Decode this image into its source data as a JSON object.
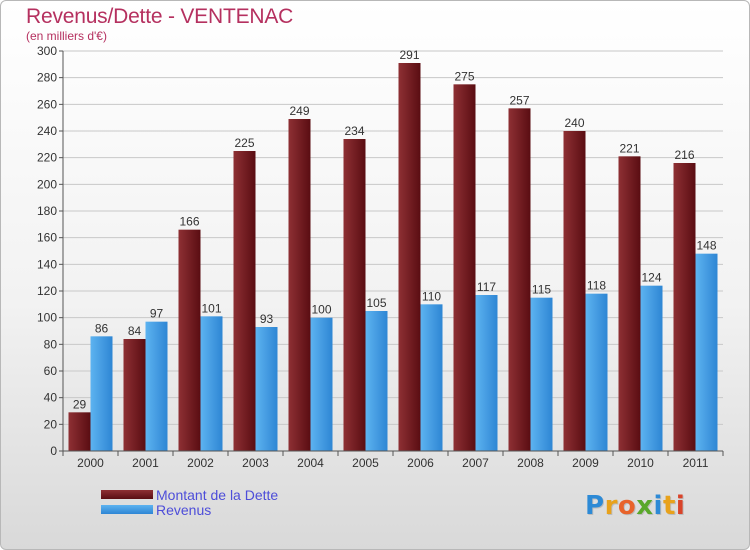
{
  "chart_data": {
    "type": "bar",
    "title": "Revenus/Dette - VENTENAC",
    "subtitle": "(en milliers d'€)",
    "xlabel": "",
    "ylabel": "",
    "ylim": [
      0,
      300
    ],
    "yticks": [
      0,
      20,
      40,
      60,
      80,
      100,
      120,
      140,
      160,
      180,
      200,
      220,
      240,
      260,
      280,
      300
    ],
    "grid": true,
    "legend_position": "bottom-left",
    "categories": [
      "2000",
      "2001",
      "2002",
      "2003",
      "2004",
      "2005",
      "2006",
      "2007",
      "2008",
      "2009",
      "2010",
      "2011"
    ],
    "series": [
      {
        "name": "Montant de la Dette",
        "color": "#7a1f24",
        "values": [
          29,
          84,
          166,
          225,
          249,
          234,
          291,
          275,
          257,
          240,
          221,
          216
        ]
      },
      {
        "name": "Revenus",
        "color": "#3d9ae6",
        "values": [
          86,
          97,
          101,
          93,
          100,
          105,
          110,
          117,
          115,
          118,
          124,
          148
        ]
      }
    ]
  },
  "colors": {
    "title": "#b5305f",
    "legend_text": "#4d4dd9",
    "debt_gradient": [
      "#8e3034",
      "#5a0d12"
    ],
    "revenue_gradient": [
      "#5db3f0",
      "#2e86d4"
    ]
  },
  "logo": {
    "letters": [
      "P",
      "r",
      "o",
      "x",
      "i",
      "t",
      "i"
    ],
    "colors": [
      "#2d8ad6",
      "#e8a21c",
      "#e8632a",
      "#5aa82a",
      "#2d8ad6",
      "#e8a21c",
      "#d9442a"
    ]
  }
}
